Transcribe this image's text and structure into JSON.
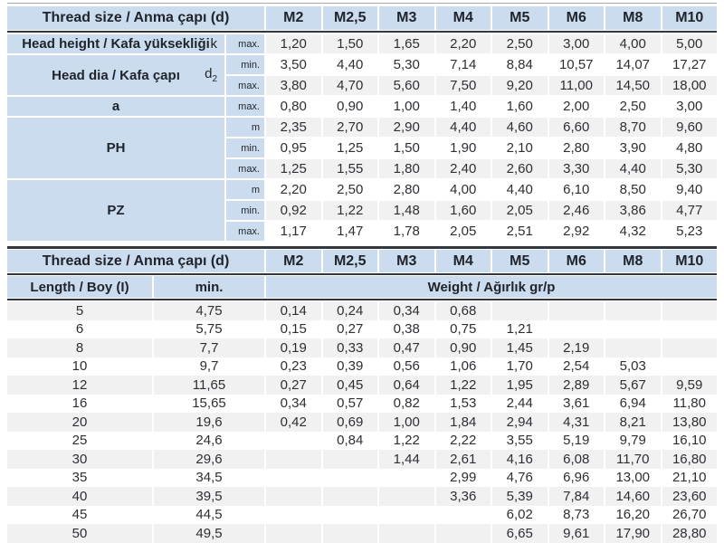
{
  "colors": {
    "header_blue": "#cbdcee",
    "stripe_gray": "#f1f1f2",
    "dark_line": "#34363d",
    "top_line": "#a7acb4"
  },
  "dimension_table": {
    "header": {
      "label": "Thread size / Anma çapı (d)",
      "sizes": [
        "M2",
        "M2,5",
        "M3",
        "M4",
        "M5",
        "M6",
        "M8",
        "M10"
      ]
    },
    "groups": [
      {
        "label": "Head height / Kafa yüksekliği",
        "symbol": "k",
        "symbol_sub": "",
        "rows": [
          {
            "limit": "max.",
            "values": [
              "1,20",
              "1,50",
              "1,65",
              "2,20",
              "2,50",
              "3,00",
              "4,00",
              "5,00"
            ]
          }
        ]
      },
      {
        "label": "Head dia / Kafa çapı",
        "symbol": "d",
        "symbol_sub": "2",
        "rows": [
          {
            "limit": "min.",
            "values": [
              "3,50",
              "4,40",
              "5,30",
              "7,14",
              "8,84",
              "10,57",
              "14,07",
              "17,27"
            ]
          },
          {
            "limit": "max.",
            "values": [
              "3,80",
              "4,70",
              "5,60",
              "7,50",
              "9,20",
              "11,00",
              "14,50",
              "18,00"
            ]
          }
        ]
      },
      {
        "label": "a",
        "symbol": "",
        "symbol_sub": "",
        "rows": [
          {
            "limit": "max.",
            "values": [
              "0,80",
              "0,90",
              "1,00",
              "1,40",
              "1,60",
              "2,00",
              "2,50",
              "3,00"
            ]
          }
        ]
      },
      {
        "label": "PH",
        "symbol": "",
        "symbol_sub": "",
        "rows": [
          {
            "limit": "m",
            "values": [
              "2,35",
              "2,70",
              "2,90",
              "4,40",
              "4,60",
              "6,60",
              "8,70",
              "9,60"
            ]
          },
          {
            "limit": "min.",
            "values": [
              "0,95",
              "1,25",
              "1,50",
              "1,90",
              "2,10",
              "2,80",
              "3,90",
              "4,80"
            ]
          },
          {
            "limit": "max.",
            "values": [
              "1,25",
              "1,55",
              "1,80",
              "2,40",
              "2,60",
              "3,30",
              "4,40",
              "5,30"
            ]
          }
        ]
      },
      {
        "label": "PZ",
        "symbol": "",
        "symbol_sub": "",
        "rows": [
          {
            "limit": "m",
            "values": [
              "2,20",
              "2,50",
              "2,80",
              "4,00",
              "4,40",
              "6,10",
              "8,50",
              "9,40"
            ]
          },
          {
            "limit": "min.",
            "values": [
              "0,92",
              "1,22",
              "1,48",
              "1,60",
              "2,05",
              "2,46",
              "3,86",
              "4,77"
            ]
          },
          {
            "limit": "max.",
            "values": [
              "1,17",
              "1,47",
              "1,78",
              "2,05",
              "2,51",
              "2,92",
              "4,32",
              "5,23"
            ]
          }
        ]
      }
    ]
  },
  "weight_table": {
    "header": {
      "label": "Thread size / Anma çapı (d)",
      "sizes": [
        "M2",
        "M2,5",
        "M3",
        "M4",
        "M5",
        "M6",
        "M8",
        "M10"
      ]
    },
    "subheader": {
      "length_label": "Length / Boy (I)",
      "min_label": "min.",
      "weight_label": "Weight / Ağırlık gr/p"
    },
    "rows": [
      {
        "length": "5",
        "min": "4,75",
        "weights": [
          "0,14",
          "0,24",
          "0,34",
          "0,68",
          "",
          "",
          "",
          ""
        ]
      },
      {
        "length": "6",
        "min": "5,75",
        "weights": [
          "0,15",
          "0,27",
          "0,38",
          "0,75",
          "1,21",
          "",
          "",
          ""
        ]
      },
      {
        "length": "8",
        "min": "7,7",
        "weights": [
          "0,19",
          "0,33",
          "0,47",
          "0,90",
          "1,45",
          "2,19",
          "",
          ""
        ]
      },
      {
        "length": "10",
        "min": "9,7",
        "weights": [
          "0,23",
          "0,39",
          "0,56",
          "1,06",
          "1,70",
          "2,54",
          "5,03",
          ""
        ]
      },
      {
        "length": "12",
        "min": "11,65",
        "weights": [
          "0,27",
          "0,45",
          "0,64",
          "1,22",
          "1,95",
          "2,89",
          "5,67",
          "9,59"
        ]
      },
      {
        "length": "16",
        "min": "15,65",
        "weights": [
          "0,34",
          "0,57",
          "0,82",
          "1,53",
          "2,44",
          "3,61",
          "6,94",
          "11,80"
        ]
      },
      {
        "length": "20",
        "min": "19,6",
        "weights": [
          "0,42",
          "0,69",
          "1,00",
          "1,84",
          "2,94",
          "4,31",
          "8,21",
          "13,80"
        ]
      },
      {
        "length": "25",
        "min": "24,6",
        "weights": [
          "",
          "0,84",
          "1,22",
          "2,22",
          "3,55",
          "5,19",
          "9,79",
          "16,10"
        ]
      },
      {
        "length": "30",
        "min": "29,6",
        "weights": [
          "",
          "",
          "1,44",
          "2,61",
          "4,16",
          "6,08",
          "11,70",
          "16,80"
        ]
      },
      {
        "length": "35",
        "min": "34,5",
        "weights": [
          "",
          "",
          "",
          "2,99",
          "4,76",
          "6,96",
          "13,00",
          "21,10"
        ]
      },
      {
        "length": "40",
        "min": "39,5",
        "weights": [
          "",
          "",
          "",
          "3,36",
          "5,39",
          "7,84",
          "14,60",
          "23,60"
        ]
      },
      {
        "length": "45",
        "min": "44,5",
        "weights": [
          "",
          "",
          "",
          "",
          "6,02",
          "8,73",
          "16,20",
          "26,70"
        ]
      },
      {
        "length": "50",
        "min": "49,5",
        "weights": [
          "",
          "",
          "",
          "",
          "6,65",
          "9,61",
          "17,90",
          "28,80"
        ]
      }
    ]
  }
}
